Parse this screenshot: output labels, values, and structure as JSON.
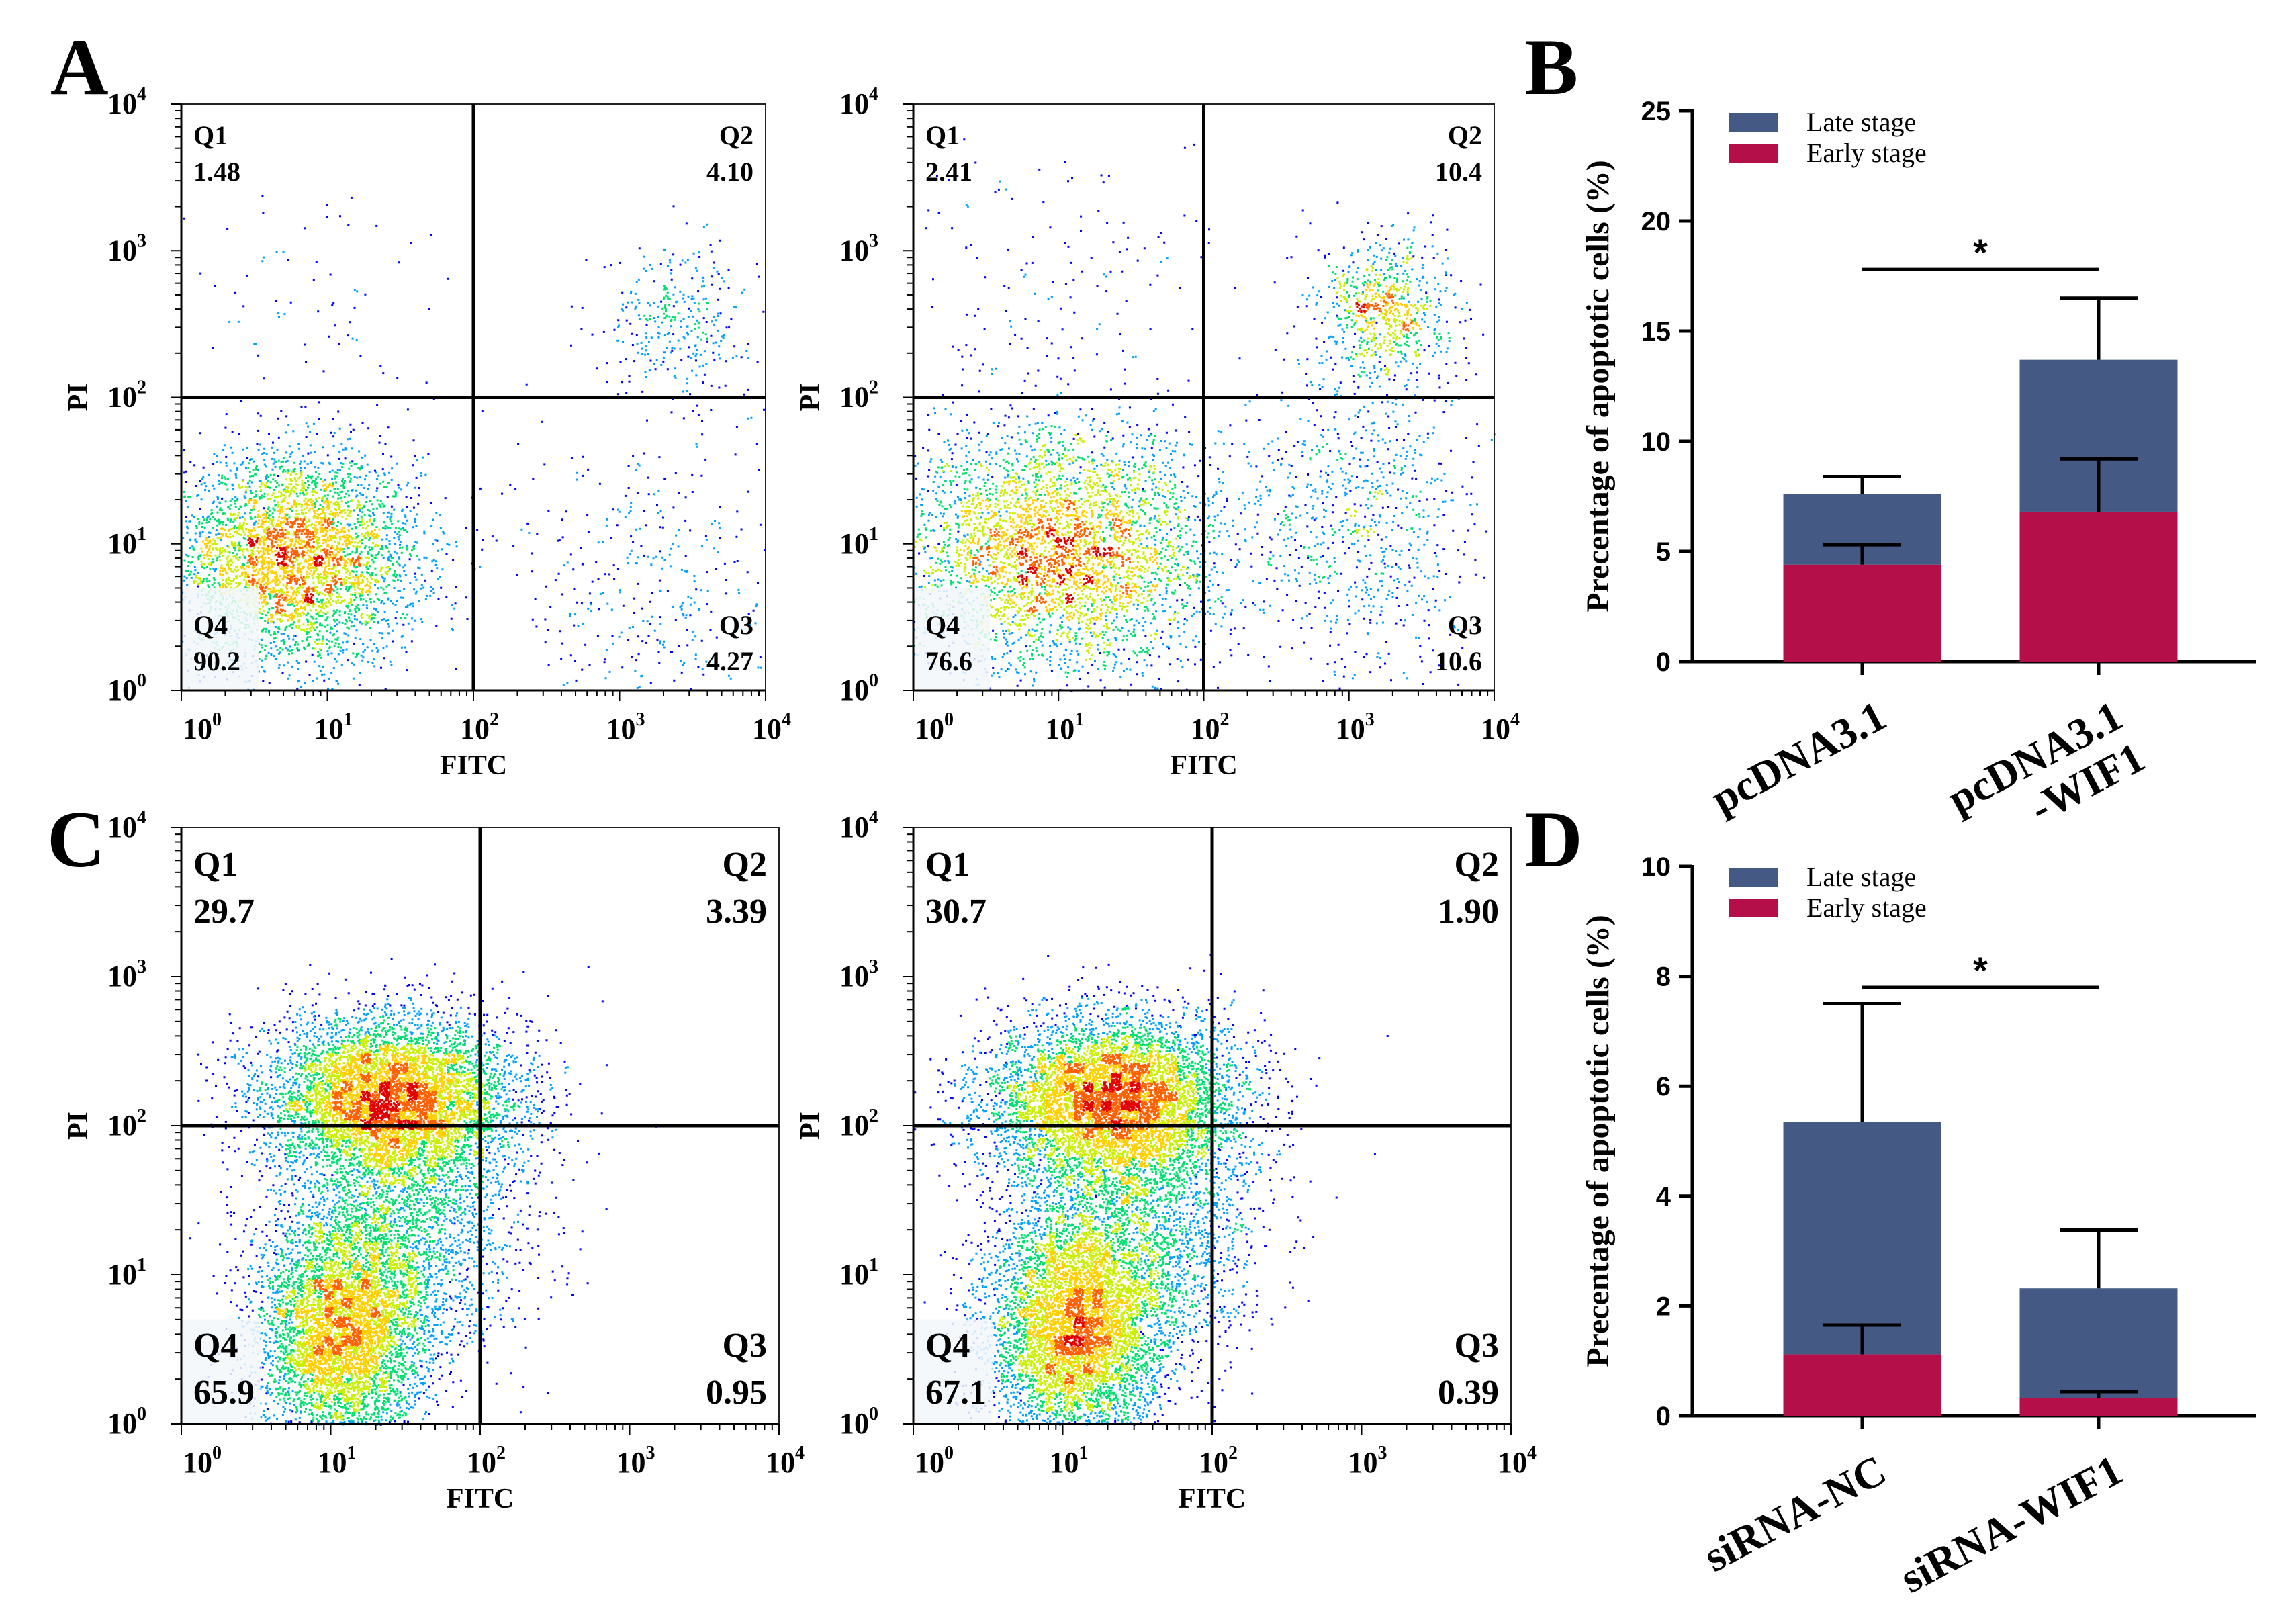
{
  "panel_letters": [
    "A",
    "B",
    "C",
    "D"
  ],
  "colors": {
    "late": "#445a85",
    "early": "#b50f4a",
    "axis": "#000000",
    "density": [
      "#0000ff",
      "#00a0ff",
      "#00e070",
      "#c8f000",
      "#ffd000",
      "#ff6000",
      "#e00000"
    ]
  },
  "chart_data": [
    {
      "id": "A-left",
      "type": "scatter",
      "plot_kind": "flow-cytometry-density",
      "xlabel": "FITC",
      "ylabel": "PI",
      "x_scale": "log",
      "y_scale": "log",
      "xlim": [
        1,
        10000
      ],
      "ylim": [
        1,
        10000
      ],
      "x_ticks": [
        {
          "base": "10",
          "exp": "0"
        },
        {
          "base": "10",
          "exp": "1"
        },
        {
          "base": "10",
          "exp": "2"
        },
        {
          "base": "10",
          "exp": "3"
        },
        {
          "base": "10",
          "exp": "4"
        }
      ],
      "y_ticks": [
        {
          "base": "10",
          "exp": "0"
        },
        {
          "base": "10",
          "exp": "1"
        },
        {
          "base": "10",
          "exp": "2"
        },
        {
          "base": "10",
          "exp": "3"
        },
        {
          "base": "10",
          "exp": "4"
        }
      ],
      "gate": {
        "x": 100,
        "y": 100
      },
      "quadrants": [
        {
          "name": "Q1",
          "value": "1.48"
        },
        {
          "name": "Q2",
          "value": "4.10"
        },
        {
          "name": "Q3",
          "value": "4.27"
        },
        {
          "name": "Q4",
          "value": "90.2"
        }
      ],
      "populations": [
        {
          "cx": 6,
          "cy": 8,
          "sx": 0.42,
          "sy": 0.36,
          "n": 4200
        },
        {
          "cx": 2500,
          "cy": 350,
          "sx": 0.25,
          "sy": 0.25,
          "n": 320
        },
        {
          "cx": 1500,
          "cy": 5,
          "sx": 0.45,
          "sy": 0.6,
          "n": 380
        },
        {
          "cx": 8,
          "cy": 500,
          "sx": 0.55,
          "sy": 0.45,
          "n": 70
        }
      ]
    },
    {
      "id": "A-right",
      "type": "scatter",
      "plot_kind": "flow-cytometry-density",
      "xlabel": "FITC",
      "ylabel": "PI",
      "x_scale": "log",
      "y_scale": "log",
      "xlim": [
        1,
        10000
      ],
      "ylim": [
        1,
        10000
      ],
      "x_ticks": [
        {
          "base": "10",
          "exp": "0"
        },
        {
          "base": "10",
          "exp": "1"
        },
        {
          "base": "10",
          "exp": "2"
        },
        {
          "base": "10",
          "exp": "3"
        },
        {
          "base": "10",
          "exp": "4"
        }
      ],
      "y_ticks": [
        {
          "base": "10",
          "exp": "0"
        },
        {
          "base": "10",
          "exp": "1"
        },
        {
          "base": "10",
          "exp": "2"
        },
        {
          "base": "10",
          "exp": "3"
        },
        {
          "base": "10",
          "exp": "4"
        }
      ],
      "gate": {
        "x": 100,
        "y": 100
      },
      "quadrants": [
        {
          "name": "Q1",
          "value": "2.41"
        },
        {
          "name": "Q2",
          "value": "10.4"
        },
        {
          "name": "Q3",
          "value": "10.6"
        },
        {
          "name": "Q4",
          "value": "76.6"
        }
      ],
      "populations": [
        {
          "cx": 10,
          "cy": 9,
          "sx": 0.55,
          "sy": 0.42,
          "n": 4200
        },
        {
          "cx": 1800,
          "cy": 400,
          "sx": 0.22,
          "sy": 0.25,
          "n": 750
        },
        {
          "cx": 1200,
          "cy": 15,
          "sx": 0.45,
          "sy": 0.55,
          "n": 850
        },
        {
          "cx": 10,
          "cy": 600,
          "sx": 0.6,
          "sy": 0.45,
          "n": 140
        }
      ]
    },
    {
      "id": "C-left",
      "type": "scatter",
      "plot_kind": "flow-cytometry-density",
      "xlabel": "FITC",
      "ylabel": "PI",
      "x_scale": "log",
      "y_scale": "log",
      "xlim": [
        1,
        10000
      ],
      "ylim": [
        1,
        10000
      ],
      "x_ticks": [
        {
          "base": "10",
          "exp": "0"
        },
        {
          "base": "10",
          "exp": "1"
        },
        {
          "base": "10",
          "exp": "2"
        },
        {
          "base": "10",
          "exp": "3"
        },
        {
          "base": "10",
          "exp": "4"
        }
      ],
      "y_ticks": [
        {
          "base": "10",
          "exp": "0"
        },
        {
          "base": "10",
          "exp": "1"
        },
        {
          "base": "10",
          "exp": "2"
        },
        {
          "base": "10",
          "exp": "3"
        },
        {
          "base": "10",
          "exp": "4"
        }
      ],
      "gate": {
        "x": 100,
        "y": 100
      },
      "quadrants": [
        {
          "name": "Q1",
          "value": "29.7"
        },
        {
          "name": "Q2",
          "value": "3.39"
        },
        {
          "name": "Q3",
          "value": "0.95"
        },
        {
          "name": "Q4",
          "value": "65.9"
        }
      ],
      "populations": [
        {
          "cx": 25,
          "cy": 150,
          "sx": 0.42,
          "sy": 0.28,
          "n": 6500
        },
        {
          "cx": 12,
          "cy": 4,
          "sx": 0.28,
          "sy": 0.4,
          "n": 5200
        },
        {
          "cx": 30,
          "cy": 20,
          "sx": 0.4,
          "sy": 0.45,
          "n": 2200
        }
      ]
    },
    {
      "id": "C-right",
      "type": "scatter",
      "plot_kind": "flow-cytometry-density",
      "xlabel": "FITC",
      "ylabel": "PI",
      "x_scale": "log",
      "y_scale": "log",
      "xlim": [
        1,
        10000
      ],
      "ylim": [
        1,
        10000
      ],
      "x_ticks": [
        {
          "base": "10",
          "exp": "0"
        },
        {
          "base": "10",
          "exp": "1"
        },
        {
          "base": "10",
          "exp": "2"
        },
        {
          "base": "10",
          "exp": "3"
        },
        {
          "base": "10",
          "exp": "4"
        }
      ],
      "y_ticks": [
        {
          "base": "10",
          "exp": "0"
        },
        {
          "base": "10",
          "exp": "1"
        },
        {
          "base": "10",
          "exp": "2"
        },
        {
          "base": "10",
          "exp": "3"
        },
        {
          "base": "10",
          "exp": "4"
        }
      ],
      "gate": {
        "x": 100,
        "y": 100
      },
      "quadrants": [
        {
          "name": "Q1",
          "value": "30.7"
        },
        {
          "name": "Q2",
          "value": "1.90"
        },
        {
          "name": "Q3",
          "value": "0.39"
        },
        {
          "name": "Q4",
          "value": "67.1"
        }
      ],
      "populations": [
        {
          "cx": 22,
          "cy": 150,
          "sx": 0.42,
          "sy": 0.28,
          "n": 6500
        },
        {
          "cx": 12,
          "cy": 4,
          "sx": 0.3,
          "sy": 0.4,
          "n": 5400
        },
        {
          "cx": 30,
          "cy": 20,
          "sx": 0.4,
          "sy": 0.45,
          "n": 2400
        }
      ]
    },
    {
      "id": "B",
      "type": "bar",
      "stacked": true,
      "categories": [
        [
          "pcDNA3.1"
        ],
        [
          "pcDNA3.1",
          "-WIF1"
        ]
      ],
      "ylabel": "Precentage of apoptotic cells (%)",
      "ylim": [
        0,
        25
      ],
      "y_ticks": [
        0,
        5,
        10,
        15,
        20,
        25
      ],
      "series": [
        {
          "name": "Early stage",
          "values": [
            4.4,
            6.8
          ],
          "errors": [
            0.9,
            2.4
          ]
        },
        {
          "name": "Late stage",
          "values": [
            3.2,
            6.9
          ],
          "errors": [
            0.8,
            2.8
          ]
        }
      ],
      "legend": [
        "Late stage",
        "Early stage"
      ],
      "legend_position": "top-left",
      "significance": {
        "label": "*",
        "between": [
          0,
          1
        ],
        "y": 17.8
      }
    },
    {
      "id": "D",
      "type": "bar",
      "stacked": true,
      "categories": [
        [
          "siRNA-NC"
        ],
        [
          "siRNA-WIF1"
        ]
      ],
      "ylabel": "Precentage of apoptotic cells (%)",
      "ylim": [
        0,
        10
      ],
      "y_ticks": [
        0,
        2,
        4,
        6,
        8,
        10
      ],
      "series": [
        {
          "name": "Early stage",
          "values": [
            1.12,
            0.32
          ],
          "errors": [
            0.53,
            0.12
          ]
        },
        {
          "name": "Late stage",
          "values": [
            4.23,
            2.0
          ],
          "errors": [
            2.15,
            1.06
          ]
        }
      ],
      "legend": [
        "Late stage",
        "Early stage"
      ],
      "legend_position": "top-left",
      "significance": {
        "label": "*",
        "between": [
          0,
          1
        ],
        "y": 7.8
      }
    }
  ]
}
